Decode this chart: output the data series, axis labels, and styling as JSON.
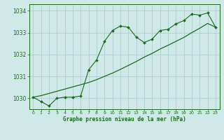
{
  "title": "Graphe pression niveau de la mer (hPa)",
  "background_color": "#cfe9e9",
  "grid_color": "#b0d4d4",
  "line_color": "#1a6b1a",
  "x_values": [
    0,
    1,
    2,
    3,
    4,
    5,
    6,
    7,
    8,
    9,
    10,
    11,
    12,
    13,
    14,
    15,
    16,
    17,
    18,
    19,
    20,
    21,
    22,
    23
  ],
  "y_measured": [
    1030.05,
    1029.85,
    1029.65,
    1030.0,
    1030.05,
    1030.05,
    1030.1,
    1031.3,
    1031.75,
    1032.6,
    1033.1,
    1033.3,
    1033.25,
    1032.8,
    1032.55,
    1032.7,
    1033.1,
    1033.15,
    1033.4,
    1033.55,
    1033.85,
    1033.8,
    1033.9,
    1033.25
  ],
  "y_trend": [
    1030.05,
    1030.12,
    1030.22,
    1030.32,
    1030.42,
    1030.52,
    1030.62,
    1030.72,
    1030.85,
    1031.0,
    1031.15,
    1031.32,
    1031.5,
    1031.68,
    1031.88,
    1032.05,
    1032.25,
    1032.42,
    1032.6,
    1032.78,
    1033.0,
    1033.2,
    1033.42,
    1033.25
  ],
  "ylim": [
    1029.5,
    1034.3
  ],
  "yticks": [
    1030,
    1031,
    1032,
    1033,
    1034
  ],
  "xlim": [
    -0.5,
    23.5
  ],
  "xticks": [
    0,
    1,
    2,
    3,
    4,
    5,
    6,
    7,
    8,
    9,
    10,
    11,
    12,
    13,
    14,
    15,
    16,
    17,
    18,
    19,
    20,
    21,
    22,
    23
  ]
}
